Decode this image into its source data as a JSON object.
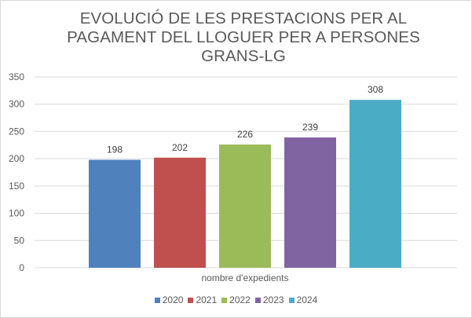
{
  "chart_data": {
    "type": "bar",
    "title_lines": [
      "EVOLUCIÓ DE LES PRESTACIONS PER AL",
      "PAGAMENT DEL LLOGUER PER A PERSONES",
      "GRANS-LG"
    ],
    "xlabel": "nombre d'expedients",
    "ylim": [
      0,
      350
    ],
    "yticks": [
      0,
      50,
      100,
      150,
      200,
      250,
      300,
      350
    ],
    "grid": true,
    "legend_position": "bottom",
    "series": [
      {
        "name": "2020",
        "values": [
          198
        ],
        "color": "#4f81bd"
      },
      {
        "name": "2021",
        "values": [
          202
        ],
        "color": "#c0504d"
      },
      {
        "name": "2022",
        "values": [
          226
        ],
        "color": "#9bbb59"
      },
      {
        "name": "2023",
        "values": [
          239
        ],
        "color": "#8064a2"
      },
      {
        "name": "2024",
        "values": [
          308
        ],
        "color": "#4bacc6"
      }
    ]
  }
}
